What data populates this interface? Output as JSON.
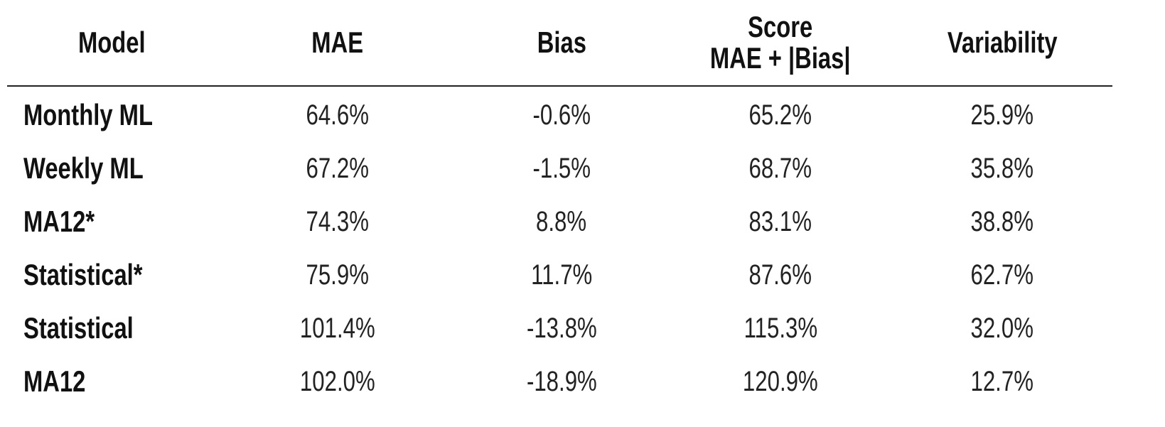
{
  "table": {
    "header": [
      "Model",
      "MAE",
      "Bias",
      "Score\nMAE + |Bias|",
      "Variability"
    ],
    "rows": [
      [
        "Monthly ML",
        "64.6%",
        "-0.6%",
        "65.2%",
        "25.9%"
      ],
      [
        "Weekly ML",
        "67.2%",
        "-1.5%",
        "68.7%",
        "35.8%"
      ],
      [
        "MA12*",
        "74.3%",
        "8.8%",
        "83.1%",
        "38.8%"
      ],
      [
        "Statistical*",
        "75.9%",
        "11.7%",
        "87.6%",
        "62.7%"
      ],
      [
        "Statistical",
        "101.4%",
        "-13.8%",
        "115.3%",
        "32.0%"
      ],
      [
        "MA12",
        "102.0%",
        "-18.9%",
        "120.9%",
        "12.7%"
      ]
    ]
  }
}
